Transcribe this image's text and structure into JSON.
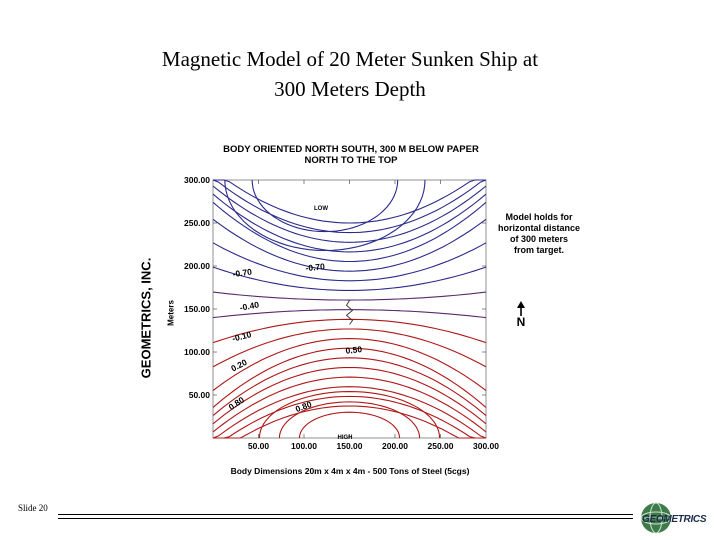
{
  "slide": {
    "title_line1": "Magnetic Model of 20 Meter Sunken Ship at",
    "title_line2": "300 Meters Depth",
    "slide_label": "Slide 20"
  },
  "chart_data": {
    "type": "contour",
    "title_line1": "BODY ORIENTED NORTH SOUTH, 300 M BELOW PAPER",
    "title_line2": "NORTH TO THE TOP",
    "ylabel": "Meters",
    "xlim": [
      0,
      300
    ],
    "ylim": [
      0,
      300
    ],
    "x_ticks": [
      "50.00",
      "100.00",
      "150.00",
      "200.00",
      "250.00",
      "300.00"
    ],
    "y_ticks": [
      "300.00",
      "250.00",
      "200.00",
      "150.00",
      "100.00",
      "50.00"
    ],
    "contour_labels": [
      "-0.70",
      "-0.70",
      "-0.40",
      "-0.10",
      "0.20",
      "0.50",
      "0.50",
      "0.80",
      "0.80"
    ],
    "low_label": "LOW",
    "high_label": "HIGH",
    "north_label": "N",
    "note_lines": [
      "Model holds for",
      "horizontal distance",
      "of 300 meters",
      "from target."
    ],
    "caption": "Body Dimensions 20m x 4m x 4m  -  500 Tons of Steel (5cgs)",
    "negative_color": "#2a2a8c",
    "positive_color": "#b01818",
    "zero_color": "#5a2a6a"
  },
  "branding": {
    "company_vertical": "GEOMETRICS, INC.",
    "logo_text": "GEOMETRICS"
  }
}
